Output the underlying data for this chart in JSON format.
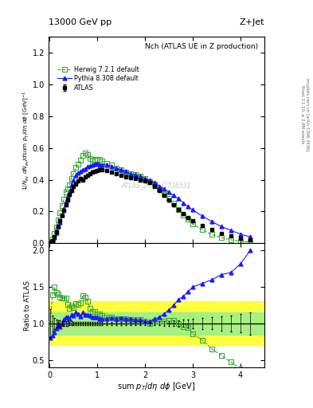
{
  "title_top": "13000 GeV pp",
  "title_right": "Z+Jet",
  "plot_title": "Nch (ATLAS UE in Z production)",
  "watermark": "ATLAS_2019_I1736531",
  "rivet_text": "Rivet 3.1.10, ≥ 2.8M events",
  "mcplots_text": "mcplots.cern.ch [arXiv:1306.3436]",
  "atlas_x": [
    0.02,
    0.06,
    0.1,
    0.14,
    0.18,
    0.22,
    0.26,
    0.3,
    0.34,
    0.38,
    0.42,
    0.46,
    0.5,
    0.55,
    0.6,
    0.65,
    0.7,
    0.75,
    0.8,
    0.85,
    0.9,
    0.95,
    1.0,
    1.05,
    1.1,
    1.2,
    1.3,
    1.4,
    1.5,
    1.6,
    1.7,
    1.8,
    1.9,
    2.0,
    2.1,
    2.2,
    2.3,
    2.4,
    2.5,
    2.6,
    2.7,
    2.8,
    2.9,
    3.0,
    3.2,
    3.4,
    3.6,
    3.8,
    4.0,
    4.2
  ],
  "atlas_y": [
    0.005,
    0.018,
    0.04,
    0.072,
    0.105,
    0.14,
    0.175,
    0.205,
    0.24,
    0.27,
    0.305,
    0.33,
    0.36,
    0.375,
    0.395,
    0.41,
    0.4,
    0.42,
    0.43,
    0.44,
    0.45,
    0.455,
    0.46,
    0.465,
    0.465,
    0.46,
    0.45,
    0.44,
    0.43,
    0.42,
    0.415,
    0.41,
    0.4,
    0.395,
    0.385,
    0.36,
    0.33,
    0.3,
    0.27,
    0.24,
    0.21,
    0.185,
    0.16,
    0.14,
    0.11,
    0.085,
    0.063,
    0.047,
    0.032,
    0.02
  ],
  "atlas_yerr": [
    0.001,
    0.002,
    0.003,
    0.004,
    0.005,
    0.006,
    0.006,
    0.007,
    0.007,
    0.008,
    0.008,
    0.009,
    0.009,
    0.009,
    0.009,
    0.009,
    0.009,
    0.009,
    0.009,
    0.009,
    0.009,
    0.009,
    0.009,
    0.009,
    0.009,
    0.009,
    0.009,
    0.009,
    0.009,
    0.009,
    0.009,
    0.009,
    0.009,
    0.009,
    0.009,
    0.009,
    0.009,
    0.009,
    0.009,
    0.009,
    0.009,
    0.009,
    0.009,
    0.009,
    0.008,
    0.007,
    0.006,
    0.005,
    0.004,
    0.003
  ],
  "herwig_x": [
    0.02,
    0.06,
    0.1,
    0.14,
    0.18,
    0.22,
    0.26,
    0.3,
    0.34,
    0.38,
    0.42,
    0.46,
    0.5,
    0.55,
    0.6,
    0.65,
    0.7,
    0.75,
    0.8,
    0.85,
    0.9,
    0.95,
    1.0,
    1.05,
    1.1,
    1.2,
    1.3,
    1.4,
    1.5,
    1.6,
    1.7,
    1.8,
    1.9,
    2.0,
    2.1,
    2.2,
    2.3,
    2.4,
    2.5,
    2.6,
    2.7,
    2.8,
    2.9,
    3.0,
    3.2,
    3.4,
    3.6,
    3.8,
    4.0,
    4.2
  ],
  "herwig_y": [
    0.005,
    0.025,
    0.06,
    0.103,
    0.147,
    0.191,
    0.237,
    0.276,
    0.324,
    0.341,
    0.368,
    0.41,
    0.439,
    0.476,
    0.497,
    0.524,
    0.553,
    0.569,
    0.558,
    0.534,
    0.523,
    0.528,
    0.521,
    0.526,
    0.518,
    0.502,
    0.491,
    0.471,
    0.461,
    0.45,
    0.436,
    0.431,
    0.421,
    0.408,
    0.386,
    0.371,
    0.34,
    0.309,
    0.281,
    0.25,
    0.21,
    0.176,
    0.15,
    0.12,
    0.085,
    0.055,
    0.035,
    0.022,
    0.012,
    0.007
  ],
  "pythia_x": [
    0.02,
    0.06,
    0.1,
    0.14,
    0.18,
    0.22,
    0.26,
    0.3,
    0.34,
    0.38,
    0.42,
    0.46,
    0.5,
    0.55,
    0.6,
    0.65,
    0.7,
    0.75,
    0.8,
    0.85,
    0.9,
    0.95,
    1.0,
    1.05,
    1.1,
    1.2,
    1.3,
    1.4,
    1.5,
    1.6,
    1.7,
    1.8,
    1.9,
    2.0,
    2.1,
    2.2,
    2.3,
    2.4,
    2.5,
    2.6,
    2.7,
    2.8,
    2.9,
    3.0,
    3.2,
    3.4,
    3.6,
    3.8,
    4.0,
    4.2
  ],
  "pythia_y": [
    0.004,
    0.015,
    0.035,
    0.067,
    0.105,
    0.134,
    0.175,
    0.215,
    0.262,
    0.295,
    0.324,
    0.37,
    0.398,
    0.43,
    0.445,
    0.451,
    0.462,
    0.47,
    0.483,
    0.489,
    0.492,
    0.498,
    0.502,
    0.494,
    0.494,
    0.494,
    0.484,
    0.473,
    0.463,
    0.452,
    0.438,
    0.431,
    0.421,
    0.408,
    0.397,
    0.382,
    0.36,
    0.34,
    0.322,
    0.3,
    0.28,
    0.254,
    0.23,
    0.21,
    0.171,
    0.136,
    0.105,
    0.08,
    0.058,
    0.04
  ],
  "ratio_herwig_y": [
    1.0,
    1.39,
    1.5,
    1.43,
    1.4,
    1.36,
    1.35,
    1.35,
    1.35,
    1.26,
    1.21,
    1.24,
    1.22,
    1.27,
    1.26,
    1.28,
    1.38,
    1.36,
    1.3,
    1.21,
    1.16,
    1.16,
    1.13,
    1.13,
    1.11,
    1.09,
    1.09,
    1.07,
    1.07,
    1.07,
    1.05,
    1.05,
    1.05,
    1.03,
    1.0,
    1.03,
    1.03,
    1.03,
    1.04,
    1.04,
    1.0,
    0.95,
    0.94,
    0.86,
    0.77,
    0.65,
    0.56,
    0.47,
    0.38,
    0.35
  ],
  "ratio_pythia_y": [
    0.8,
    0.83,
    0.875,
    0.93,
    1.0,
    0.96,
    1.0,
    1.05,
    1.09,
    1.09,
    1.06,
    1.12,
    1.11,
    1.15,
    1.13,
    1.1,
    1.15,
    1.12,
    1.12,
    1.11,
    1.09,
    1.09,
    1.09,
    1.06,
    1.06,
    1.07,
    1.08,
    1.07,
    1.08,
    1.07,
    1.06,
    1.05,
    1.05,
    1.03,
    1.03,
    1.06,
    1.09,
    1.13,
    1.19,
    1.25,
    1.33,
    1.37,
    1.44,
    1.5,
    1.55,
    1.6,
    1.67,
    1.7,
    1.82,
    2.0
  ],
  "atlas_color": "#000000",
  "herwig_color": "#3aaa35",
  "pythia_color": "#1a1aff",
  "band_yellow_lo": 0.7,
  "band_yellow_hi": 1.3,
  "band_green_lo": 0.85,
  "band_green_hi": 1.15,
  "main_ylim": [
    0.0,
    1.3
  ],
  "ratio_ylim": [
    0.4,
    2.1
  ],
  "ratio_yticks": [
    0.5,
    1.0,
    1.5,
    2.0
  ],
  "xlim": [
    -0.02,
    4.5
  ]
}
